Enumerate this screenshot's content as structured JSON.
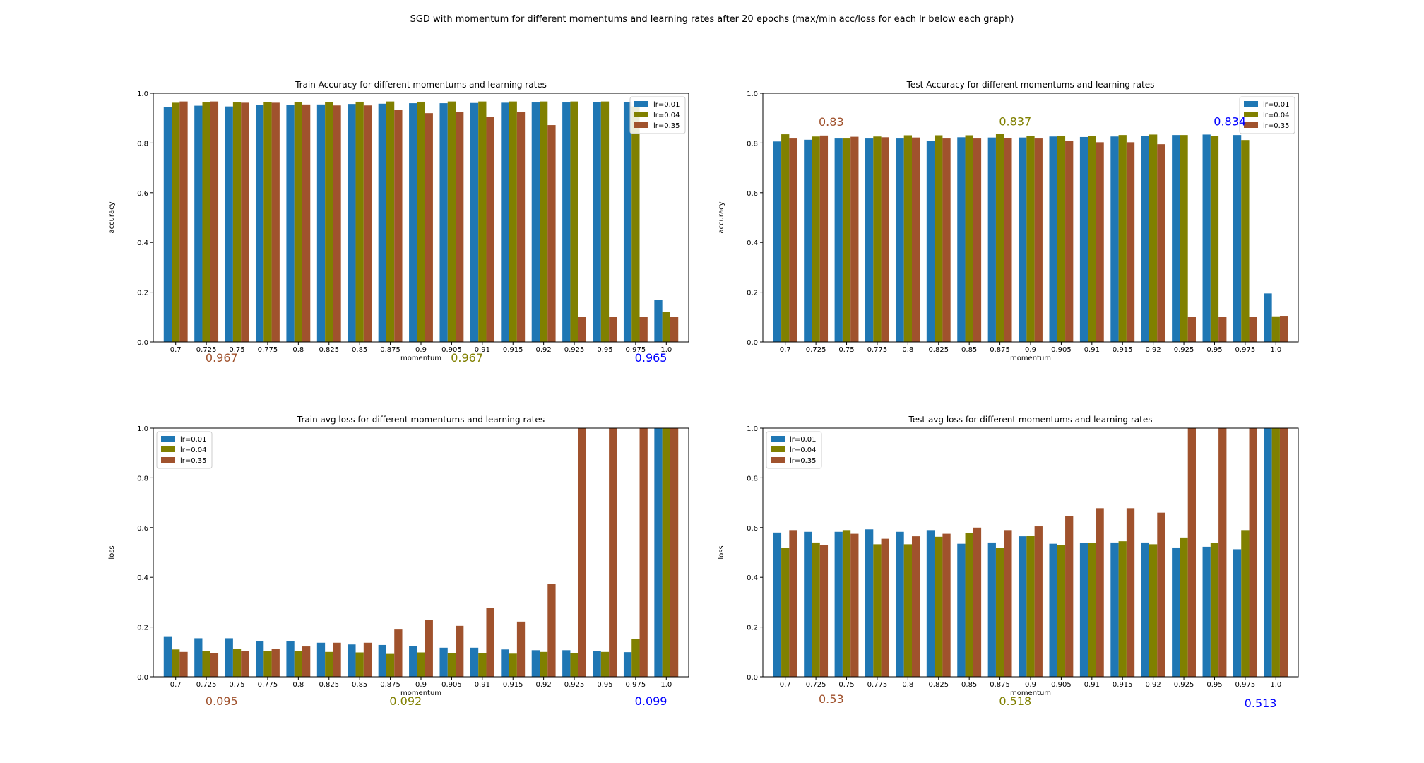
{
  "suptitle": "SGD with momentum for different momentums and learning rates after 20 epochs (max/min acc/loss for each lr below each graph)",
  "colors": {
    "lr=0.01": "#1f77b4",
    "lr=0.04": "#808000",
    "lr=0.35": "#a0522d",
    "note_blue": "#0000ff"
  },
  "chart_data": [
    {
      "type": "bar",
      "title": "Train Accuracy for different momentums and learning rates",
      "xlabel": "momentum",
      "ylabel": "accuracy",
      "ylim": [
        0,
        1.0
      ],
      "yticks": [
        "0.0",
        "0.2",
        "0.4",
        "0.6",
        "0.8",
        "1.0"
      ],
      "grid": false,
      "legend_position": "top-right",
      "categories": [
        "0.7",
        "0.725",
        "0.75",
        "0.775",
        "0.8",
        "0.825",
        "0.85",
        "0.875",
        "0.9",
        "0.905",
        "0.91",
        "0.915",
        "0.92",
        "0.925",
        "0.95",
        "0.975",
        "1.0"
      ],
      "series": [
        {
          "name": "lr=0.01",
          "color": "#1f77b4",
          "values": [
            0.945,
            0.95,
            0.947,
            0.952,
            0.953,
            0.955,
            0.957,
            0.958,
            0.96,
            0.96,
            0.961,
            0.962,
            0.963,
            0.963,
            0.964,
            0.965,
            0.17
          ]
        },
        {
          "name": "lr=0.04",
          "color": "#808000",
          "values": [
            0.962,
            0.963,
            0.963,
            0.964,
            0.965,
            0.965,
            0.966,
            0.967,
            0.966,
            0.967,
            0.967,
            0.967,
            0.967,
            0.967,
            0.967,
            0.947,
            0.12
          ]
        },
        {
          "name": "lr=0.35",
          "color": "#a0522d",
          "values": [
            0.967,
            0.967,
            0.962,
            0.962,
            0.955,
            0.951,
            0.951,
            0.933,
            0.92,
            0.925,
            0.905,
            0.925,
            0.872,
            0.1,
            0.1,
            0.1,
            0.1
          ]
        }
      ],
      "annotations": [
        {
          "text": "0.967",
          "color": "#a0522d",
          "col": 1.5,
          "dy": 28
        },
        {
          "text": "0.967",
          "color": "#808000",
          "col": 9.5,
          "dy": 28
        },
        {
          "text": "0.965",
          "color": "#0000ff",
          "col": 15.5,
          "dy": 28
        }
      ]
    },
    {
      "type": "bar",
      "title": "Test Accuracy for different momentums and learning rates",
      "xlabel": "momentum",
      "ylabel": "accuracy",
      "ylim": [
        0,
        1.0
      ],
      "yticks": [
        "0.0",
        "0.2",
        "0.4",
        "0.6",
        "0.8",
        "1.0"
      ],
      "grid": false,
      "legend_position": "top-right",
      "categories": [
        "0.7",
        "0.725",
        "0.75",
        "0.775",
        "0.8",
        "0.825",
        "0.85",
        "0.875",
        "0.9",
        "0.905",
        "0.91",
        "0.915",
        "0.92",
        "0.925",
        "0.95",
        "0.975",
        "1.0"
      ],
      "series": [
        {
          "name": "lr=0.01",
          "color": "#1f77b4",
          "values": [
            0.806,
            0.813,
            0.818,
            0.818,
            0.818,
            0.808,
            0.823,
            0.822,
            0.822,
            0.826,
            0.824,
            0.826,
            0.829,
            0.832,
            0.834,
            0.832,
            0.195
          ]
        },
        {
          "name": "lr=0.04",
          "color": "#808000",
          "values": [
            0.835,
            0.826,
            0.818,
            0.826,
            0.831,
            0.831,
            0.831,
            0.837,
            0.828,
            0.829,
            0.828,
            0.832,
            0.834,
            0.832,
            0.828,
            0.812,
            0.103
          ]
        },
        {
          "name": "lr=0.35",
          "color": "#a0522d",
          "values": [
            0.818,
            0.83,
            0.825,
            0.823,
            0.822,
            0.818,
            0.818,
            0.82,
            0.818,
            0.808,
            0.803,
            0.803,
            0.795,
            0.1,
            0.1,
            0.1,
            0.105
          ]
        }
      ],
      "annotations": [
        {
          "text": "0.83",
          "color": "#a0522d",
          "col": 1.5,
          "vy": 0.87
        },
        {
          "text": "0.837",
          "color": "#808000",
          "col": 7.5,
          "vy": 0.871
        },
        {
          "text": "0.834",
          "color": "#0000ff",
          "col": 14.5,
          "vy": 0.871
        }
      ]
    },
    {
      "type": "bar",
      "title": "Train avg loss for different momentums and learning rates",
      "xlabel": "momentum",
      "ylabel": "loss",
      "ylim": [
        0,
        1.0
      ],
      "yticks": [
        "0.0",
        "0.2",
        "0.4",
        "0.6",
        "0.8",
        "1.0"
      ],
      "grid": false,
      "legend_position": "top-left",
      "categories": [
        "0.7",
        "0.725",
        "0.75",
        "0.775",
        "0.8",
        "0.825",
        "0.85",
        "0.875",
        "0.9",
        "0.905",
        "0.91",
        "0.915",
        "0.92",
        "0.925",
        "0.95",
        "0.975",
        "1.0"
      ],
      "series": [
        {
          "name": "lr=0.01",
          "color": "#1f77b4",
          "values": [
            0.163,
            0.155,
            0.155,
            0.142,
            0.142,
            0.137,
            0.13,
            0.128,
            0.123,
            0.117,
            0.117,
            0.11,
            0.107,
            0.107,
            0.105,
            0.099,
            1.0
          ]
        },
        {
          "name": "lr=0.04",
          "color": "#808000",
          "values": [
            0.11,
            0.105,
            0.113,
            0.105,
            0.103,
            0.1,
            0.098,
            0.092,
            0.098,
            0.095,
            0.095,
            0.093,
            0.1,
            0.094,
            0.1,
            0.152,
            1.0
          ]
        },
        {
          "name": "lr=0.35",
          "color": "#a0522d",
          "values": [
            0.1,
            0.095,
            0.103,
            0.113,
            0.122,
            0.137,
            0.137,
            0.19,
            0.23,
            0.205,
            0.277,
            0.222,
            0.375,
            1.0,
            1.0,
            1.0,
            1.0
          ]
        }
      ],
      "annotations": [
        {
          "text": "0.095",
          "color": "#a0522d",
          "col": 1.5,
          "dy": 40
        },
        {
          "text": "0.092",
          "color": "#808000",
          "col": 7.5,
          "dy": 40
        },
        {
          "text": "0.099",
          "color": "#0000ff",
          "col": 15.5,
          "dy": 40
        }
      ]
    },
    {
      "type": "bar",
      "title": "Test avg loss for different momentums and learning rates",
      "xlabel": "momentum",
      "ylabel": "loss",
      "ylim": [
        0,
        1.0
      ],
      "yticks": [
        "0.0",
        "0.2",
        "0.4",
        "0.6",
        "0.8",
        "1.0"
      ],
      "grid": false,
      "legend_position": "top-left",
      "categories": [
        "0.7",
        "0.725",
        "0.75",
        "0.775",
        "0.8",
        "0.825",
        "0.85",
        "0.875",
        "0.9",
        "0.905",
        "0.91",
        "0.915",
        "0.92",
        "0.925",
        "0.95",
        "0.975",
        "1.0"
      ],
      "series": [
        {
          "name": "lr=0.01",
          "color": "#1f77b4",
          "values": [
            0.58,
            0.583,
            0.583,
            0.593,
            0.583,
            0.59,
            0.535,
            0.54,
            0.565,
            0.535,
            0.538,
            0.54,
            0.54,
            0.52,
            0.523,
            0.513,
            1.0
          ]
        },
        {
          "name": "lr=0.04",
          "color": "#808000",
          "values": [
            0.518,
            0.54,
            0.59,
            0.533,
            0.533,
            0.563,
            0.578,
            0.518,
            0.568,
            0.53,
            0.538,
            0.545,
            0.533,
            0.56,
            0.537,
            0.59,
            1.0
          ]
        },
        {
          "name": "lr=0.35",
          "color": "#a0522d",
          "values": [
            0.59,
            0.53,
            0.575,
            0.555,
            0.565,
            0.575,
            0.6,
            0.59,
            0.605,
            0.645,
            0.678,
            0.678,
            0.66,
            1.0,
            1.0,
            1.0,
            1.0
          ]
        }
      ],
      "annotations": [
        {
          "text": "0.53",
          "color": "#a0522d",
          "col": 1.5,
          "dy": 37
        },
        {
          "text": "0.518",
          "color": "#808000",
          "col": 7.5,
          "dy": 40
        },
        {
          "text": "0.513",
          "color": "#0000ff",
          "col": 15.5,
          "dy": 43
        }
      ]
    }
  ]
}
